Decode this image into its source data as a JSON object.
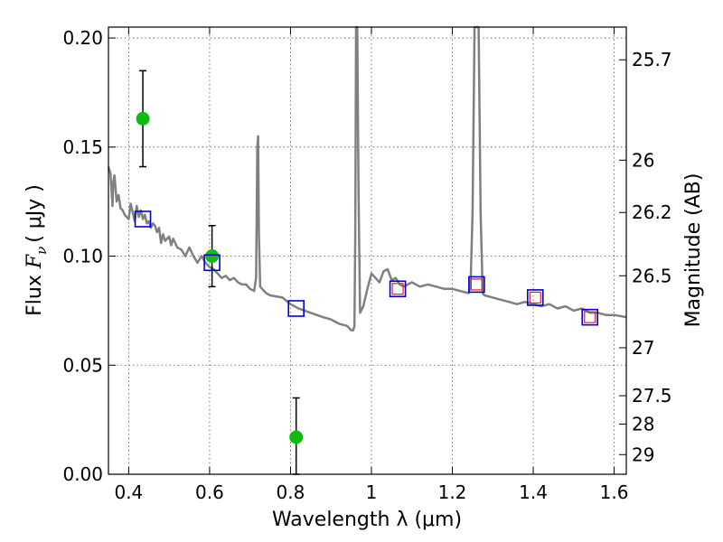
{
  "chart_data": {
    "type": "scatter",
    "xlabel": "Wavelength  λ (μm)",
    "ylabel": {
      "prefix": "Flux  ",
      "var": "F",
      "sub": "ν",
      "unit": "( μJy )"
    },
    "y2label": "Magnitude (AB)",
    "xlim": [
      0.35,
      1.63
    ],
    "ylim": [
      0.0,
      0.205
    ],
    "xticks": [
      0.4,
      0.6,
      0.8,
      1.0,
      1.2,
      1.4,
      1.6
    ],
    "xtick_labels": [
      "0.4",
      "0.6",
      "0.8",
      "1",
      "1.2",
      "1.4",
      "1.6"
    ],
    "yticks": [
      0.0,
      0.05,
      0.1,
      0.15,
      0.2
    ],
    "ytick_labels": [
      "0.00",
      "0.05",
      "0.10",
      "0.15",
      "0.20"
    ],
    "mag_ticks": [
      {
        "label": "25.7",
        "flux": 0.19
      },
      {
        "label": "26",
        "flux": 0.144
      },
      {
        "label": "26.2",
        "flux": 0.12
      },
      {
        "label": "26.5",
        "flux": 0.091
      },
      {
        "label": "27",
        "flux": 0.058
      },
      {
        "label": "27.5",
        "flux": 0.036
      },
      {
        "label": "28",
        "flux": 0.023
      },
      {
        "label": "29",
        "flux": 0.009
      }
    ],
    "grid": true,
    "colors": {
      "sed": "#808080",
      "observed": "#11bb11",
      "errorbar": "#000000",
      "model_phot": "#0000dd",
      "model_phot_inner": "#dd2222"
    },
    "sed_model": {
      "x": [
        0.35,
        0.355,
        0.36,
        0.362,
        0.365,
        0.37,
        0.375,
        0.38,
        0.385,
        0.39,
        0.395,
        0.4,
        0.405,
        0.41,
        0.415,
        0.42,
        0.425,
        0.43,
        0.435,
        0.44,
        0.445,
        0.45,
        0.455,
        0.46,
        0.465,
        0.47,
        0.475,
        0.48,
        0.485,
        0.49,
        0.5,
        0.505,
        0.51,
        0.515,
        0.52,
        0.53,
        0.54,
        0.55,
        0.56,
        0.57,
        0.58,
        0.59,
        0.6,
        0.61,
        0.62,
        0.63,
        0.64,
        0.65,
        0.66,
        0.67,
        0.68,
        0.69,
        0.7,
        0.71,
        0.715,
        0.718,
        0.72,
        0.722,
        0.725,
        0.73,
        0.74,
        0.75,
        0.78,
        0.8,
        0.82,
        0.85,
        0.88,
        0.9,
        0.92,
        0.94,
        0.95,
        0.955,
        0.958,
        0.96,
        0.962,
        0.965,
        0.968,
        0.972,
        0.98,
        0.99,
        1.0,
        1.01,
        1.02,
        1.03,
        1.04,
        1.05,
        1.06,
        1.07,
        1.08,
        1.1,
        1.12,
        1.14,
        1.16,
        1.18,
        1.2,
        1.22,
        1.24,
        1.245,
        1.25,
        1.255,
        1.26,
        1.265,
        1.27,
        1.275,
        1.28,
        1.3,
        1.32,
        1.34,
        1.36,
        1.38,
        1.4,
        1.42,
        1.44,
        1.46,
        1.48,
        1.5,
        1.52,
        1.54,
        1.56,
        1.58,
        1.6,
        1.63
      ],
      "y": [
        0.141,
        0.138,
        0.123,
        0.134,
        0.137,
        0.125,
        0.128,
        0.122,
        0.121,
        0.119,
        0.118,
        0.117,
        0.124,
        0.12,
        0.116,
        0.123,
        0.118,
        0.121,
        0.117,
        0.119,
        0.115,
        0.116,
        0.113,
        0.115,
        0.114,
        0.111,
        0.113,
        0.106,
        0.11,
        0.107,
        0.109,
        0.105,
        0.108,
        0.106,
        0.104,
        0.103,
        0.1,
        0.104,
        0.1,
        0.097,
        0.1,
        0.097,
        0.095,
        0.094,
        0.092,
        0.09,
        0.091,
        0.089,
        0.09,
        0.088,
        0.087,
        0.087,
        0.085,
        0.084,
        0.09,
        0.15,
        0.155,
        0.11,
        0.086,
        0.085,
        0.083,
        0.082,
        0.081,
        0.078,
        0.076,
        0.074,
        0.072,
        0.071,
        0.069,
        0.068,
        0.066,
        0.066,
        0.068,
        0.11,
        0.21,
        0.22,
        0.13,
        0.074,
        0.077,
        0.085,
        0.092,
        0.09,
        0.088,
        0.093,
        0.094,
        0.089,
        0.09,
        0.087,
        0.086,
        0.088,
        0.086,
        0.087,
        0.086,
        0.085,
        0.085,
        0.084,
        0.083,
        0.087,
        0.12,
        0.22,
        0.22,
        0.22,
        0.12,
        0.083,
        0.082,
        0.081,
        0.08,
        0.079,
        0.078,
        0.079,
        0.078,
        0.077,
        0.078,
        0.076,
        0.077,
        0.075,
        0.076,
        0.074,
        0.074,
        0.073,
        0.073,
        0.072
      ]
    },
    "observed_points": [
      {
        "x": 0.435,
        "y": 0.163,
        "yerr": 0.022
      },
      {
        "x": 0.606,
        "y": 0.1,
        "yerr": 0.014
      },
      {
        "x": 0.814,
        "y": 0.017,
        "yerr": 0.018
      }
    ],
    "model_photometry": [
      {
        "x": 0.435,
        "y": 0.117,
        "inner": false
      },
      {
        "x": 0.606,
        "y": 0.097,
        "inner": false
      },
      {
        "x": 0.814,
        "y": 0.076,
        "inner": false
      },
      {
        "x": 1.065,
        "y": 0.085,
        "inner": true
      },
      {
        "x": 1.26,
        "y": 0.087,
        "inner": true
      },
      {
        "x": 1.405,
        "y": 0.081,
        "inner": true
      },
      {
        "x": 1.54,
        "y": 0.072,
        "inner": true
      }
    ]
  }
}
